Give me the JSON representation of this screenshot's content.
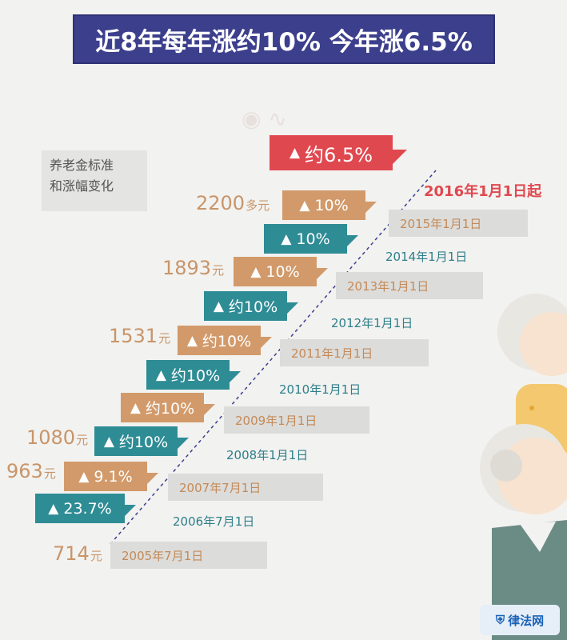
{
  "title": "近8年每年涨约10% 今年涨6.5%",
  "legend": [
    "养老金标准",
    "和涨幅变化"
  ],
  "chart_data": {
    "type": "bar",
    "title": "近8年每年涨约10% 今年涨6.5%",
    "categories": [
      "2005年7月1日",
      "2006年7月1日",
      "2007年7月1日",
      "2008年1月1日",
      "2009年1月1日",
      "2010年1月1日",
      "2011年1月1日",
      "2012年1月1日",
      "2013年1月1日",
      "2014年1月1日",
      "2015年1月1日",
      "2016年1月1日起"
    ],
    "increase_labels": [
      "23.7%",
      "9.1%",
      "约10%",
      "约10%",
      "约10%",
      "约10%",
      "约10%",
      "10%",
      "10%",
      "10%",
      "约6.5%"
    ],
    "pension_amounts": [
      {
        "value": 714,
        "label": "714",
        "unit": "元"
      },
      {
        "value": 963,
        "label": "963",
        "unit": "元"
      },
      {
        "value": 1080,
        "label": "1080",
        "unit": "元"
      },
      {
        "value": 1531,
        "label": "1531",
        "unit": "元"
      },
      {
        "value": 1893,
        "label": "1893",
        "unit": "元"
      },
      {
        "value": 2200,
        "label": "2200",
        "unit": "多元"
      }
    ]
  },
  "colors": {
    "orange": "#d29a6a",
    "teal": "#2e8c95",
    "red": "#e0484f",
    "banner": "#3c3f8c"
  },
  "site_logo": "律法网"
}
